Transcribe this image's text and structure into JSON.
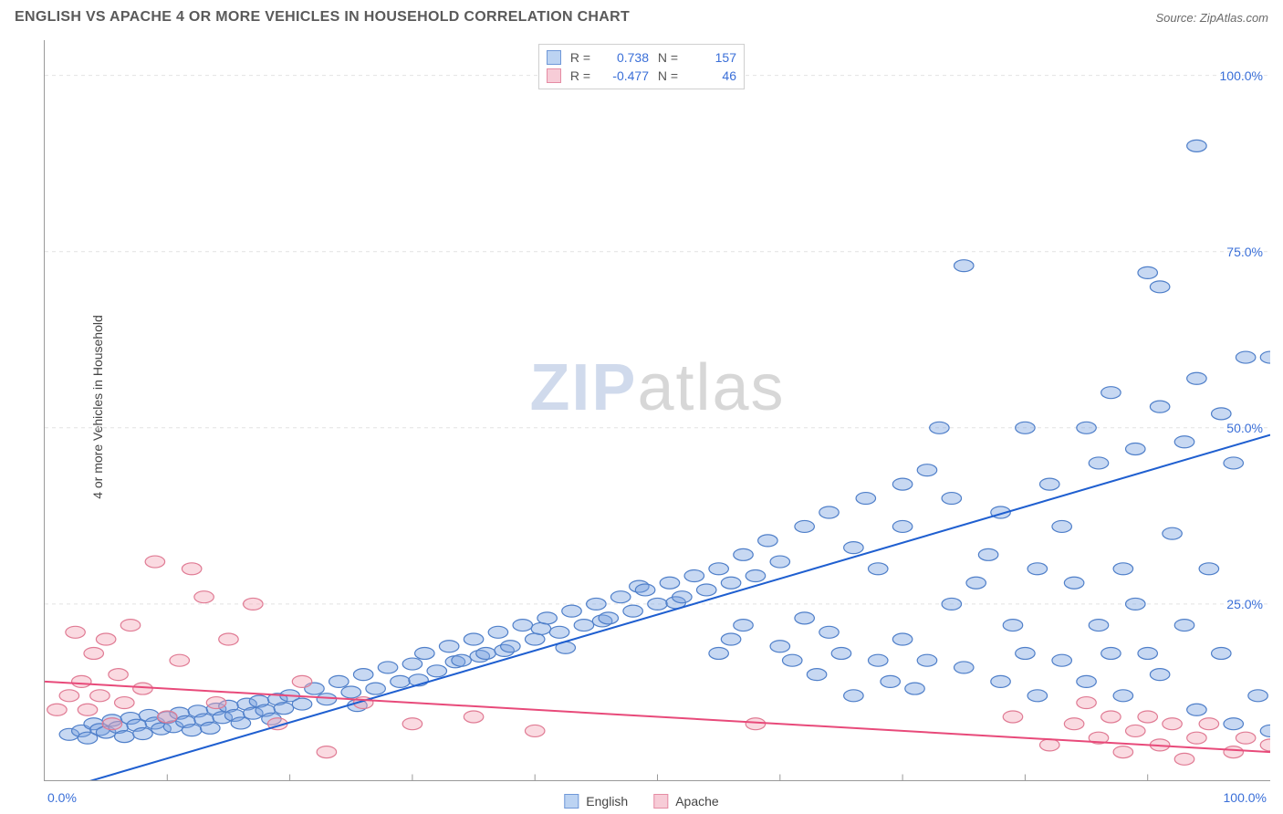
{
  "title": "ENGLISH VS APACHE 4 OR MORE VEHICLES IN HOUSEHOLD CORRELATION CHART",
  "source_label": "Source: ZipAtlas.com",
  "ylabel": "4 or more Vehicles in Household",
  "watermark_a": "ZIP",
  "watermark_b": "atlas",
  "chart": {
    "type": "scatter",
    "xlim": [
      0,
      100
    ],
    "ylim": [
      0,
      105
    ],
    "x_ticks": [
      0,
      100
    ],
    "x_tick_labels": [
      "0.0%",
      "100.0%"
    ],
    "x_minor_ticks": [
      10,
      20,
      30,
      40,
      50,
      60,
      70,
      80,
      90
    ],
    "y_ticks": [
      25,
      50,
      75,
      100
    ],
    "y_tick_labels": [
      "25.0%",
      "50.0%",
      "75.0%",
      "100.0%"
    ],
    "grid_color": "#e2e2e2",
    "grid_dash": "4 4",
    "background_color": "#ffffff",
    "axis_color": "#999999",
    "tick_label_color": "#3a6fd8",
    "axis_label_color": "#444444",
    "axis_label_fontsize": 14,
    "tick_fontsize": 14,
    "marker_radius": 8,
    "marker_stroke_width": 1.2,
    "marker_fill_opacity": 0.42,
    "trend_line_width": 2,
    "series": [
      {
        "name": "English",
        "color": "#7aa3e0",
        "stroke": "#4f7fc9",
        "line_color": "#1f5fd0",
        "R": 0.738,
        "N": 157,
        "trend": {
          "y_at_x0": -2,
          "y_at_x100": 49
        },
        "points": [
          [
            2,
            6.5
          ],
          [
            3,
            7
          ],
          [
            3.5,
            6
          ],
          [
            4,
            8
          ],
          [
            4.5,
            7.2
          ],
          [
            5,
            6.8
          ],
          [
            5.5,
            8.5
          ],
          [
            6,
            7.5
          ],
          [
            6.5,
            6.2
          ],
          [
            7,
            8.8
          ],
          [
            7.5,
            7.8
          ],
          [
            8,
            6.6
          ],
          [
            8.5,
            9.2
          ],
          [
            9,
            8.1
          ],
          [
            9.5,
            7.3
          ],
          [
            10,
            8.9
          ],
          [
            10.5,
            7.6
          ],
          [
            11,
            9.5
          ],
          [
            11.5,
            8.3
          ],
          [
            12,
            7.1
          ],
          [
            12.5,
            9.8
          ],
          [
            13,
            8.6
          ],
          [
            13.5,
            7.4
          ],
          [
            14,
            10.1
          ],
          [
            14.5,
            8.9
          ],
          [
            15,
            10.5
          ],
          [
            15.5,
            9.2
          ],
          [
            16,
            8.1
          ],
          [
            16.5,
            10.8
          ],
          [
            17,
            9.5
          ],
          [
            17.5,
            11.2
          ],
          [
            18,
            9.9
          ],
          [
            18.5,
            8.7
          ],
          [
            19,
            11.5
          ],
          [
            19.5,
            10.2
          ],
          [
            20,
            12
          ],
          [
            21,
            10.8
          ],
          [
            22,
            13
          ],
          [
            23,
            11.5
          ],
          [
            24,
            14
          ],
          [
            25,
            12.5
          ],
          [
            25.5,
            10.6
          ],
          [
            26,
            15
          ],
          [
            27,
            13
          ],
          [
            28,
            16
          ],
          [
            29,
            14
          ],
          [
            30,
            16.5
          ],
          [
            30.5,
            14.2
          ],
          [
            31,
            18
          ],
          [
            32,
            15.5
          ],
          [
            33,
            19
          ],
          [
            33.5,
            16.8
          ],
          [
            34,
            17
          ],
          [
            35,
            20
          ],
          [
            35.5,
            17.6
          ],
          [
            36,
            18
          ],
          [
            37,
            21
          ],
          [
            37.5,
            18.4
          ],
          [
            38,
            19
          ],
          [
            39,
            22
          ],
          [
            40,
            20
          ],
          [
            40.5,
            21.5
          ],
          [
            41,
            23
          ],
          [
            42,
            21
          ],
          [
            42.5,
            18.8
          ],
          [
            43,
            24
          ],
          [
            44,
            22
          ],
          [
            45,
            25
          ],
          [
            45.5,
            22.6
          ],
          [
            46,
            23
          ],
          [
            47,
            26
          ],
          [
            48,
            24
          ],
          [
            48.5,
            27.5
          ],
          [
            49,
            27
          ],
          [
            50,
            25
          ],
          [
            51,
            28
          ],
          [
            51.5,
            25.2
          ],
          [
            52,
            26
          ],
          [
            53,
            29
          ],
          [
            54,
            27
          ],
          [
            55,
            18
          ],
          [
            55,
            30
          ],
          [
            56,
            20
          ],
          [
            56,
            28
          ],
          [
            57,
            32
          ],
          [
            57,
            22
          ],
          [
            58,
            29
          ],
          [
            59,
            34
          ],
          [
            60,
            31
          ],
          [
            60,
            19
          ],
          [
            61,
            17
          ],
          [
            62,
            36
          ],
          [
            62,
            23
          ],
          [
            63,
            15
          ],
          [
            64,
            38
          ],
          [
            64,
            21
          ],
          [
            65,
            18
          ],
          [
            66,
            33
          ],
          [
            66,
            12
          ],
          [
            67,
            40
          ],
          [
            68,
            17
          ],
          [
            68,
            30
          ],
          [
            69,
            14
          ],
          [
            70,
            42
          ],
          [
            70,
            20
          ],
          [
            70,
            36
          ],
          [
            71,
            13
          ],
          [
            72,
            44
          ],
          [
            72,
            17
          ],
          [
            73,
            50
          ],
          [
            74,
            25
          ],
          [
            74,
            40
          ],
          [
            75,
            16
          ],
          [
            75,
            73
          ],
          [
            76,
            28
          ],
          [
            77,
            32
          ],
          [
            78,
            14
          ],
          [
            78,
            38
          ],
          [
            79,
            22
          ],
          [
            80,
            50
          ],
          [
            80,
            18
          ],
          [
            81,
            30
          ],
          [
            81,
            12
          ],
          [
            82,
            42
          ],
          [
            83,
            17
          ],
          [
            83,
            36
          ],
          [
            84,
            28
          ],
          [
            85,
            14
          ],
          [
            85,
            50
          ],
          [
            86,
            22
          ],
          [
            86,
            45
          ],
          [
            87,
            18
          ],
          [
            87,
            55
          ],
          [
            88,
            30
          ],
          [
            88,
            12
          ],
          [
            89,
            47
          ],
          [
            89,
            25
          ],
          [
            90,
            72
          ],
          [
            90,
            18
          ],
          [
            91,
            53
          ],
          [
            91,
            15
          ],
          [
            91,
            70
          ],
          [
            92,
            35
          ],
          [
            93,
            22
          ],
          [
            93,
            48
          ],
          [
            94,
            57
          ],
          [
            94,
            10
          ],
          [
            94,
            90
          ],
          [
            95,
            30
          ],
          [
            96,
            52
          ],
          [
            96,
            18
          ],
          [
            97,
            45
          ],
          [
            97,
            8
          ],
          [
            98,
            60
          ],
          [
            99,
            12
          ],
          [
            100,
            60
          ],
          [
            100,
            7
          ]
        ]
      },
      {
        "name": "Apache",
        "color": "#f2a8b8",
        "stroke": "#e07b94",
        "line_color": "#e84a7a",
        "R": -0.477,
        "N": 46,
        "trend": {
          "y_at_x0": 14,
          "y_at_x100": 4
        },
        "points": [
          [
            1,
            10
          ],
          [
            2,
            12
          ],
          [
            2.5,
            21
          ],
          [
            3,
            14
          ],
          [
            3.5,
            10
          ],
          [
            4,
            18
          ],
          [
            4.5,
            12
          ],
          [
            5,
            20
          ],
          [
            5.5,
            8
          ],
          [
            6,
            15
          ],
          [
            6.5,
            11
          ],
          [
            7,
            22
          ],
          [
            8,
            13
          ],
          [
            9,
            31
          ],
          [
            10,
            9
          ],
          [
            11,
            17
          ],
          [
            12,
            30
          ],
          [
            13,
            26
          ],
          [
            14,
            11
          ],
          [
            15,
            20
          ],
          [
            17,
            25
          ],
          [
            19,
            8
          ],
          [
            21,
            14
          ],
          [
            23,
            4
          ],
          [
            26,
            11
          ],
          [
            30,
            8
          ],
          [
            35,
            9
          ],
          [
            40,
            7
          ],
          [
            58,
            8
          ],
          [
            79,
            9
          ],
          [
            82,
            5
          ],
          [
            84,
            8
          ],
          [
            85,
            11
          ],
          [
            86,
            6
          ],
          [
            87,
            9
          ],
          [
            88,
            4
          ],
          [
            89,
            7
          ],
          [
            90,
            9
          ],
          [
            91,
            5
          ],
          [
            92,
            8
          ],
          [
            93,
            3
          ],
          [
            94,
            6
          ],
          [
            95,
            8
          ],
          [
            97,
            4
          ],
          [
            98,
            6
          ],
          [
            100,
            5
          ]
        ]
      }
    ]
  },
  "stats_legend": {
    "r_label": "R =",
    "n_label": "N =",
    "rows": [
      {
        "swatch_fill": "#bcd3f2",
        "swatch_stroke": "#6f98d8",
        "r": "0.738",
        "n": "157"
      },
      {
        "swatch_fill": "#f7ccd7",
        "swatch_stroke": "#e58ca4",
        "r": "-0.477",
        "n": "46"
      }
    ]
  },
  "series_legend": {
    "items": [
      {
        "swatch_fill": "#bcd3f2",
        "swatch_stroke": "#6f98d8",
        "label": "English"
      },
      {
        "swatch_fill": "#f7ccd7",
        "swatch_stroke": "#e58ca4",
        "label": "Apache"
      }
    ]
  }
}
